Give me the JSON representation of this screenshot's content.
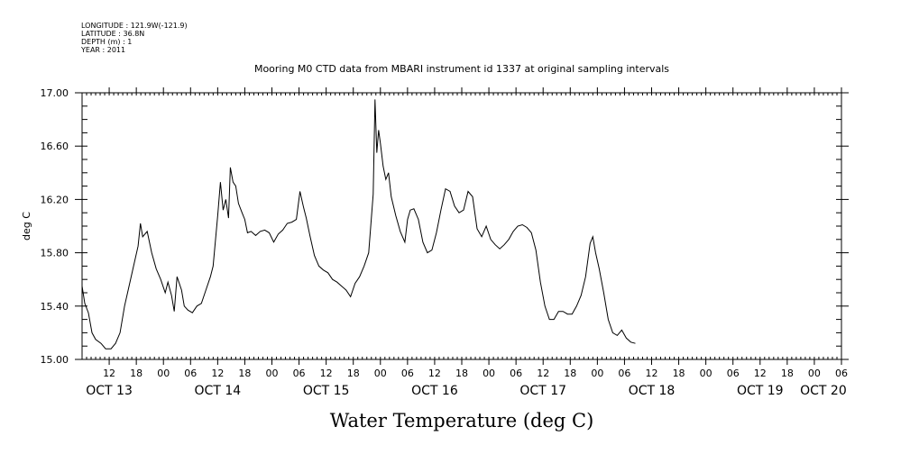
{
  "metadata": {
    "longitude": "LONGITUDE : 121.9W(-121.9)",
    "latitude": "LATITUDE : 36.8N",
    "depth": "DEPTH (m) : 1",
    "year": "YEAR : 2011"
  },
  "chart_data": {
    "type": "line",
    "title": "Mooring M0 CTD data from MBARI instrument id 1337 at original sampling intervals",
    "xlabel": "Water Temperature (deg C)",
    "ylabel": "deg C",
    "ylim": [
      15.0,
      17.0
    ],
    "y_ticks": [
      "15.00",
      "15.40",
      "15.80",
      "16.20",
      "16.60",
      "17.00"
    ],
    "x_unit": "hours since 2011-10-13 00:00",
    "xlim": [
      6,
      174
    ],
    "hour_ticks": [
      {
        "t": 12,
        "label": "12"
      },
      {
        "t": 18,
        "label": "18"
      },
      {
        "t": 24,
        "label": "00"
      },
      {
        "t": 30,
        "label": "06"
      },
      {
        "t": 36,
        "label": "12"
      },
      {
        "t": 42,
        "label": "18"
      },
      {
        "t": 48,
        "label": "00"
      },
      {
        "t": 54,
        "label": "06"
      },
      {
        "t": 60,
        "label": "12"
      },
      {
        "t": 66,
        "label": "18"
      },
      {
        "t": 72,
        "label": "00"
      },
      {
        "t": 78,
        "label": "06"
      },
      {
        "t": 84,
        "label": "12"
      },
      {
        "t": 90,
        "label": "18"
      },
      {
        "t": 96,
        "label": "00"
      },
      {
        "t": 102,
        "label": "06"
      },
      {
        "t": 108,
        "label": "12"
      },
      {
        "t": 114,
        "label": "18"
      },
      {
        "t": 120,
        "label": "00"
      },
      {
        "t": 126,
        "label": "06"
      },
      {
        "t": 132,
        "label": "12"
      },
      {
        "t": 138,
        "label": "18"
      },
      {
        "t": 144,
        "label": "00"
      },
      {
        "t": 150,
        "label": "06"
      },
      {
        "t": 156,
        "label": "12"
      },
      {
        "t": 162,
        "label": "18"
      },
      {
        "t": 168,
        "label": "00"
      },
      {
        "t": 174,
        "label": "06"
      }
    ],
    "day_labels": [
      {
        "t": 12,
        "label": "OCT 13"
      },
      {
        "t": 36,
        "label": "OCT 14"
      },
      {
        "t": 60,
        "label": "OCT 15"
      },
      {
        "t": 84,
        "label": "OCT 16"
      },
      {
        "t": 108,
        "label": "OCT 17"
      },
      {
        "t": 132,
        "label": "OCT 18"
      },
      {
        "t": 156,
        "label": "OCT 19"
      },
      {
        "t": 170,
        "label": "OCT 20"
      }
    ],
    "series": [
      {
        "points": [
          [
            6,
            15.55
          ],
          [
            6.6,
            15.42
          ],
          [
            7.4,
            15.35
          ],
          [
            8.2,
            15.2
          ],
          [
            9,
            15.15
          ],
          [
            10.2,
            15.12
          ],
          [
            11.2,
            15.08
          ],
          [
            12.4,
            15.08
          ],
          [
            13.4,
            15.12
          ],
          [
            14.4,
            15.2
          ],
          [
            15.4,
            15.4
          ],
          [
            16.4,
            15.55
          ],
          [
            17.4,
            15.7
          ],
          [
            18.4,
            15.85
          ],
          [
            18.9,
            16.02
          ],
          [
            19.4,
            15.92
          ],
          [
            20.4,
            15.96
          ],
          [
            21.4,
            15.8
          ],
          [
            22.4,
            15.68
          ],
          [
            23.4,
            15.6
          ],
          [
            24.4,
            15.5
          ],
          [
            25,
            15.58
          ],
          [
            25.8,
            15.48
          ],
          [
            26.4,
            15.36
          ],
          [
            27,
            15.62
          ],
          [
            28,
            15.52
          ],
          [
            28.6,
            15.4
          ],
          [
            29.4,
            15.37
          ],
          [
            30.4,
            15.35
          ],
          [
            31.4,
            15.4
          ],
          [
            32.4,
            15.42
          ],
          [
            33.4,
            15.52
          ],
          [
            34.4,
            15.62
          ],
          [
            35,
            15.7
          ],
          [
            36,
            16.08
          ],
          [
            36.6,
            16.33
          ],
          [
            37.2,
            16.12
          ],
          [
            37.8,
            16.2
          ],
          [
            38.4,
            16.06
          ],
          [
            38.8,
            16.44
          ],
          [
            39.4,
            16.33
          ],
          [
            40,
            16.3
          ],
          [
            40.6,
            16.17
          ],
          [
            41.4,
            16.1
          ],
          [
            42,
            16.05
          ],
          [
            42.6,
            15.95
          ],
          [
            43.4,
            15.96
          ],
          [
            44.4,
            15.93
          ],
          [
            45.4,
            15.96
          ],
          [
            46.4,
            15.97
          ],
          [
            47.4,
            15.95
          ],
          [
            48.4,
            15.88
          ],
          [
            49.4,
            15.94
          ],
          [
            50.4,
            15.97
          ],
          [
            51.4,
            16.02
          ],
          [
            52.4,
            16.03
          ],
          [
            53.4,
            16.05
          ],
          [
            54.2,
            16.26
          ],
          [
            55,
            16.14
          ],
          [
            55.6,
            16.06
          ],
          [
            56.4,
            15.93
          ],
          [
            57.4,
            15.78
          ],
          [
            58.4,
            15.7
          ],
          [
            59.4,
            15.67
          ],
          [
            60.4,
            15.65
          ],
          [
            61.4,
            15.6
          ],
          [
            62.4,
            15.58
          ],
          [
            63.4,
            15.55
          ],
          [
            64.4,
            15.52
          ],
          [
            65.4,
            15.47
          ],
          [
            66.4,
            15.57
          ],
          [
            67.4,
            15.62
          ],
          [
            68.4,
            15.7
          ],
          [
            69.4,
            15.8
          ],
          [
            70.4,
            16.24
          ],
          [
            70.8,
            16.95
          ],
          [
            71.2,
            16.55
          ],
          [
            71.6,
            16.72
          ],
          [
            72,
            16.62
          ],
          [
            72.6,
            16.45
          ],
          [
            73.2,
            16.35
          ],
          [
            73.8,
            16.4
          ],
          [
            74.4,
            16.22
          ],
          [
            75.4,
            16.08
          ],
          [
            76.4,
            15.96
          ],
          [
            77.4,
            15.88
          ],
          [
            78,
            16.05
          ],
          [
            78.6,
            16.12
          ],
          [
            79.4,
            16.13
          ],
          [
            80.4,
            16.05
          ],
          [
            81.4,
            15.88
          ],
          [
            82.4,
            15.8
          ],
          [
            83.4,
            15.82
          ],
          [
            84.4,
            15.95
          ],
          [
            85.4,
            16.12
          ],
          [
            86.4,
            16.28
          ],
          [
            87.4,
            16.26
          ],
          [
            88.4,
            16.15
          ],
          [
            89.4,
            16.1
          ],
          [
            90.4,
            16.12
          ],
          [
            91.4,
            16.26
          ],
          [
            92.4,
            16.22
          ],
          [
            93.4,
            15.98
          ],
          [
            94.4,
            15.92
          ],
          [
            95.4,
            16.0
          ],
          [
            96.4,
            15.9
          ],
          [
            97.4,
            15.86
          ],
          [
            98.4,
            15.83
          ],
          [
            99.4,
            15.86
          ],
          [
            100.4,
            15.9
          ],
          [
            101.4,
            15.96
          ],
          [
            102.4,
            16.0
          ],
          [
            103.4,
            16.01
          ],
          [
            104.4,
            15.99
          ],
          [
            105.4,
            15.95
          ],
          [
            106.4,
            15.82
          ],
          [
            107.4,
            15.58
          ],
          [
            108.4,
            15.4
          ],
          [
            109.4,
            15.3
          ],
          [
            110.4,
            15.3
          ],
          [
            111.4,
            15.36
          ],
          [
            112.4,
            15.36
          ],
          [
            113.4,
            15.34
          ],
          [
            114.4,
            15.34
          ],
          [
            115.4,
            15.4
          ],
          [
            116.4,
            15.48
          ],
          [
            117.4,
            15.62
          ],
          [
            118.4,
            15.87
          ],
          [
            119,
            15.92
          ],
          [
            119.6,
            15.8
          ],
          [
            120.4,
            15.68
          ],
          [
            121.4,
            15.5
          ],
          [
            122.4,
            15.3
          ],
          [
            123.4,
            15.2
          ],
          [
            124.4,
            15.18
          ],
          [
            125.4,
            15.22
          ],
          [
            126.4,
            15.16
          ],
          [
            127.4,
            15.13
          ],
          [
            128.4,
            15.12
          ]
        ]
      }
    ]
  }
}
